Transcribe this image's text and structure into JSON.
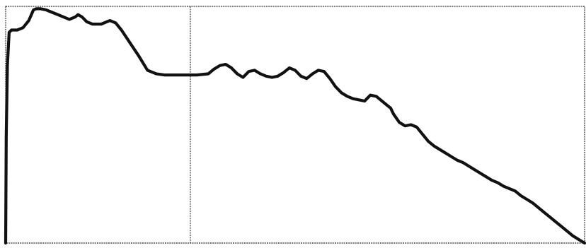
{
  "chart_data": {
    "type": "line",
    "title": "",
    "xlabel": "",
    "ylabel": "",
    "x_range": [
      0,
      100
    ],
    "y_range": [
      0,
      100
    ],
    "grid": false,
    "legend": "none",
    "colors": {
      "line": "#111111",
      "frame": "#2b2b2b",
      "divider": "#3a3a3a",
      "background": "#ffffff"
    },
    "divider_x": [
      31.9
    ],
    "series": [
      {
        "x": [
          0,
          0.1,
          0.3,
          0.6,
          1.0,
          2.0,
          3.0,
          4.0,
          4.8,
          5.3,
          6.0,
          7.0,
          8.0,
          9.0,
          10.0,
          11.0,
          12.0,
          12.5,
          13.2,
          14.0,
          15.0,
          16.5,
          18.0,
          19.0,
          20.0,
          21.5,
          23.0,
          24.5,
          26.0,
          27.5,
          29.0,
          31.0,
          33.0,
          35.0,
          36.0,
          37.0,
          38.0,
          39.0,
          40.0,
          41.0,
          42.0,
          43.0,
          44.0,
          45.0,
          46.0,
          47.0,
          48.0,
          49.0,
          50.0,
          51.0,
          52.0,
          53.0,
          54.0,
          55.0,
          56.0,
          57.0,
          58.0,
          59.0,
          60.0,
          61.0,
          62.0,
          63.0,
          64.0,
          65.0,
          66.0,
          66.5,
          67.0,
          68.0,
          69.0,
          70.0,
          71.0,
          72.0,
          73.0,
          74.0,
          75.0,
          76.0,
          77.0,
          78.0,
          79.0,
          80.0,
          81.0,
          82.0,
          83.0,
          84.0,
          85.0,
          86.0,
          87.0,
          88.0,
          89.0,
          90.0,
          91.0,
          92.0,
          93.0,
          94.0,
          95.0,
          96.0,
          97.0,
          98.0,
          99.0,
          100.0
        ],
        "y": [
          0,
          45,
          75,
          89,
          90,
          90,
          91,
          94,
          98.5,
          99,
          99,
          98.5,
          97.5,
          96.5,
          95.5,
          94.5,
          95.5,
          96.5,
          95.5,
          93.5,
          92.5,
          92.5,
          94,
          93,
          90,
          84.5,
          79,
          73,
          71.5,
          71,
          71,
          71,
          71,
          71.5,
          73.5,
          75,
          75.5,
          74,
          71.5,
          70,
          72.5,
          73,
          71.5,
          70.5,
          70,
          70.5,
          72,
          74,
          73,
          70.5,
          69.5,
          71.5,
          73,
          72.5,
          69.5,
          66,
          63.5,
          62,
          61,
          60.5,
          60,
          62.5,
          62,
          60,
          58,
          57,
          54.5,
          51,
          49.5,
          50,
          49,
          46,
          43,
          41,
          39.5,
          38,
          36.5,
          35,
          34,
          32.5,
          31,
          29.5,
          28,
          26.5,
          25.5,
          24,
          23,
          22,
          20,
          18.5,
          17,
          15,
          13,
          11,
          9,
          7,
          5,
          3,
          1.5,
          0
        ]
      }
    ]
  }
}
